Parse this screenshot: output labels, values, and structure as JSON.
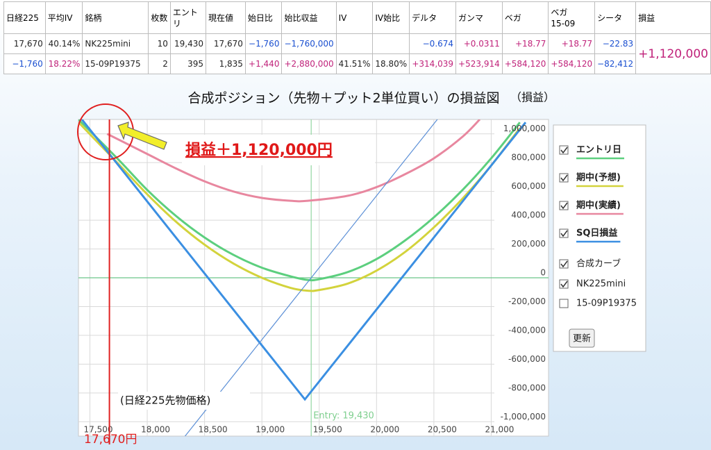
{
  "table": {
    "headers": [
      "日経225",
      "平均IV",
      "銘柄",
      "枚数",
      "エントリ",
      "現在値",
      "始日比",
      "始比収益",
      "IV",
      "IV始比",
      "デルタ",
      "ガンマ",
      "ベガ",
      "ベガ\n15-09",
      "シータ",
      "損益"
    ],
    "rows": [
      [
        "17,670",
        "40.14%",
        "NK225mini",
        "10",
        "19,430",
        "17,670",
        "−1,760",
        "−1,760,000",
        null,
        null,
        "−0.674",
        "+0.0311",
        "+18.77",
        "+18.77",
        "−22.83"
      ],
      [
        "−1,760",
        "18.22%",
        "15-09P19375",
        "2",
        "395",
        "1,835",
        "+1,440",
        "+2,880,000",
        "41.51%",
        "18.80%",
        "+314,039",
        "+523,914",
        "+584,120",
        "+584,120",
        "−82,412"
      ]
    ],
    "total": "+1,120,000"
  },
  "title": "合成ポジション（先物＋プット2単位買い）の損益図",
  "title_note": "（損益）",
  "chart_data": {
    "type": "line",
    "xlim": [
      17400,
      21500
    ],
    "ylim": [
      -1100000,
      1100000
    ],
    "xticks": [
      {
        "value": 17500,
        "label": "17,500"
      },
      {
        "value": 18000,
        "label": "18,000"
      },
      {
        "value": 18500,
        "label": "18,500"
      },
      {
        "value": 19000,
        "label": "19,000"
      },
      {
        "value": 19500,
        "label": "19,500"
      },
      {
        "value": 20000,
        "label": "20,000"
      },
      {
        "value": 20500,
        "label": "20,500"
      },
      {
        "value": 21000,
        "label": "21,000"
      }
    ],
    "yticks": [
      {
        "value": -1000000,
        "label": "-1,000,000"
      },
      {
        "value": -800000,
        "label": "-800,000"
      },
      {
        "value": -600000,
        "label": "-600,000"
      },
      {
        "value": -400000,
        "label": "-400,000"
      },
      {
        "value": -200000,
        "label": "-200,000"
      },
      0,
      {
        "value": 200000,
        "label": "200,000"
      },
      {
        "value": 400000,
        "label": "400,000"
      },
      {
        "value": 600000,
        "label": "600,000"
      },
      {
        "value": 800000,
        "label": "800,000"
      },
      {
        "value": 1000000,
        "label": "1,000,000"
      }
    ],
    "grid": true,
    "series": [
      {
        "name": "エントリ日",
        "color": "#5ccf7e",
        "checked": true,
        "smooth": true,
        "x": [
          17400,
          17750,
          18000,
          18250,
          18500,
          18750,
          19000,
          19250,
          19400,
          19500,
          19750,
          20000,
          20250,
          20500,
          20750,
          21000,
          21250
        ],
        "values": [
          1100000,
          820000,
          610000,
          430000,
          280000,
          160000,
          70000,
          10000,
          -15000,
          -10000,
          40000,
          130000,
          260000,
          420000,
          610000,
          830000,
          1080000
        ]
      },
      {
        "name": "期中(予想)",
        "color": "#d3d33c",
        "checked": true,
        "smooth": true,
        "x": [
          17400,
          17750,
          18000,
          18250,
          18500,
          18750,
          19000,
          19250,
          19400,
          19500,
          19750,
          20000,
          20250,
          20500,
          20750,
          21000,
          21250
        ],
        "values": [
          1080000,
          790000,
          580000,
          390000,
          230000,
          100000,
          0,
          -70000,
          -90000,
          -85000,
          -40000,
          50000,
          180000,
          350000,
          550000,
          780000,
          1040000
        ]
      },
      {
        "name": "期中(実績)",
        "color": "#e8879f",
        "checked": true,
        "smooth": true,
        "x": [
          17650,
          18000,
          18250,
          18500,
          18750,
          19000,
          19250,
          19400,
          19750,
          20000,
          20250,
          20500,
          20750,
          20900
        ],
        "values": [
          1000000,
          860000,
          760000,
          670000,
          600000,
          555000,
          535000,
          535000,
          570000,
          630000,
          720000,
          830000,
          980000,
          1100000
        ]
      },
      {
        "name": "SQ日損益",
        "color": "#3b8fe2",
        "checked": true,
        "smooth": false,
        "x": [
          17400,
          19375,
          21300
        ],
        "values": [
          1130000,
          -845000,
          1080000
        ]
      },
      {
        "name": "NK225mini",
        "color": "#5b8fd6",
        "checked": true,
        "smooth": false,
        "x": [
          18300,
          20550
        ],
        "values": [
          -1130000,
          1120000
        ]
      }
    ],
    "current_price": {
      "value": 17670,
      "label": "17,670円"
    },
    "entry": {
      "value": 19430,
      "label": "Entry: 19,430"
    },
    "annotations": [
      "損益＋1,120,000円",
      "(日経225先物価格)"
    ]
  },
  "panel": {
    "options": [
      {
        "label": "合成カーブ",
        "checked": true
      },
      {
        "label": "15-09P19375",
        "checked": false
      }
    ],
    "button": "更新"
  }
}
